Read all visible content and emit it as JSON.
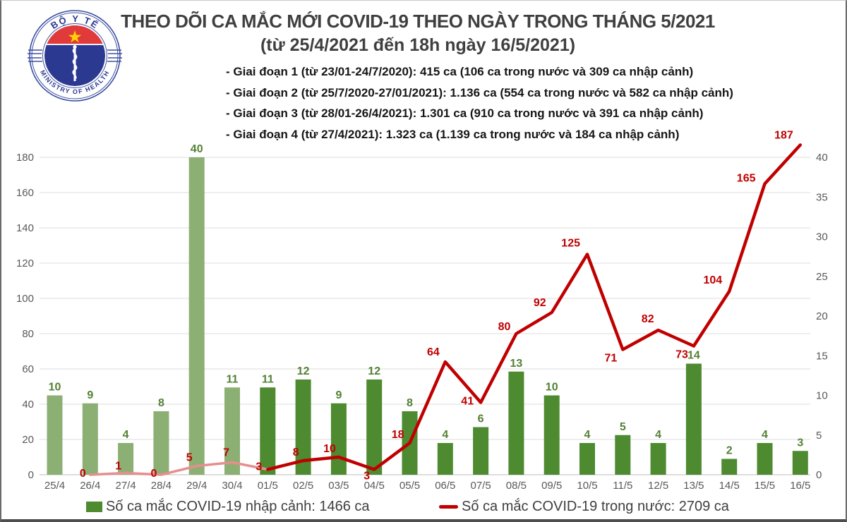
{
  "header": {
    "title": "THEO DÕI CA MẮC MỚI COVID-19 THEO NGÀY TRONG THÁNG 5/2021",
    "subtitle": "(từ 25/4/2021 đến 18h ngày 16/5/2021)",
    "bullets": [
      "- Giai đoạn 1 (từ 23/01-24/7/2020): 415 ca (106 ca trong nước và 309 ca nhập cảnh)",
      "- Giai đoạn 2 (từ 25/7/2020-27/01/2021): 1.136 ca (554 ca trong nước và 582 ca nhập cảnh)",
      "- Giai đoạn 3 (từ 28/01-26/4/2021): 1.301 ca (910 ca trong nước và 391 ca nhập cảnh)",
      "- Giai đoạn 4 (từ 27/4/2021): 1.323 ca (1.139 ca trong nước và 184 ca nhập cảnh)"
    ],
    "logo": {
      "top_text": "BỘ Y TẾ",
      "bottom_text": "MINISTRY OF HEALTH"
    }
  },
  "chart_data": {
    "type": "combo (bar + line, dual axis)",
    "categories": [
      "25/4",
      "26/4",
      "27/4",
      "28/4",
      "29/4",
      "30/4",
      "01/5",
      "02/5",
      "03/5",
      "04/5",
      "05/5",
      "06/5",
      "07/5",
      "08/5",
      "09/5",
      "10/5",
      "11/5",
      "12/5",
      "13/5",
      "14/5",
      "15/5",
      "16/5"
    ],
    "series": [
      {
        "name": "Số ca mắc COVID-19 nhập cảnh",
        "type": "bar",
        "axis": "right",
        "values": [
          10,
          9,
          4,
          8,
          40,
          11,
          11,
          12,
          9,
          12,
          8,
          4,
          6,
          13,
          10,
          4,
          5,
          4,
          14,
          2,
          4,
          3
        ]
      },
      {
        "name": "Số ca mắc COVID-19 trong nước",
        "type": "line",
        "axis": "left",
        "start_index": 1,
        "values": [
          0,
          1,
          0,
          5,
          7,
          3,
          8,
          10,
          3,
          18,
          64,
          41,
          80,
          92,
          125,
          71,
          82,
          73,
          104,
          165,
          187
        ]
      }
    ],
    "left_axis": {
      "ticks": [
        0,
        20,
        40,
        60,
        80,
        100,
        120,
        140,
        160,
        180
      ],
      "max": 180
    },
    "right_axis": {
      "ticks": [
        0,
        5,
        10,
        15,
        20,
        25,
        30,
        35,
        40
      ],
      "max": 40
    },
    "faded_until_index": 6,
    "colors": {
      "bar_april": "#8caf74",
      "bar_may": "#4e8a2f",
      "bar_label": "#538135",
      "line": "#c00000",
      "line_early": "#e58f8f",
      "axis_text": "#595959",
      "gridline": "#dcdcdc",
      "baseline": "#c9c9c9"
    },
    "legend_position": "bottom"
  },
  "legend": {
    "bar_label": "Số ca mắc COVID-19 nhập cảnh: 1466 ca",
    "line_label": "Số ca mắc COVID-19 trong nước: 2709 ca"
  }
}
